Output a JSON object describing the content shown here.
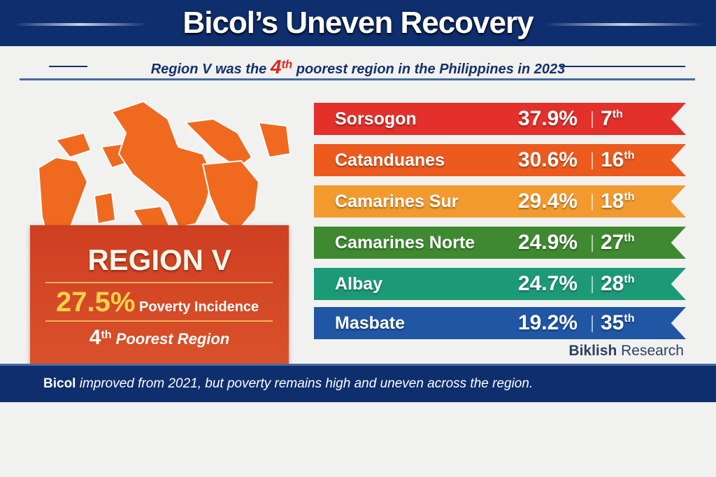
{
  "header": {
    "title": "Bicol’s Uneven Recovery"
  },
  "subtitle": {
    "before": "Region V was the ",
    "rank": "4",
    "rank_suffix": "th",
    "after": " poorest region in the Philippines in 2023"
  },
  "region": {
    "name": "REGION V",
    "incidence": "27.5%",
    "incidence_label": "Poverty Incidence",
    "rank": "4",
    "rank_suffix": "th",
    "rank_label": "Poorest Region"
  },
  "provinces": [
    {
      "name": "Sorsogon",
      "pct": "37.9%",
      "rank": "7",
      "sfx": "th",
      "color": "#e3302a"
    },
    {
      "name": "Catanduanes",
      "pct": "30.6%",
      "rank": "16",
      "sfx": "th",
      "color": "#ec5a1e"
    },
    {
      "name": "Camarines Sur",
      "pct": "29.4%",
      "rank": "18",
      "sfx": "th",
      "color": "#f29a2e"
    },
    {
      "name": "Camarines Norte",
      "pct": "24.9%",
      "rank": "27",
      "sfx": "th",
      "color": "#3f8a30"
    },
    {
      "name": "Albay",
      "pct": "24.7%",
      "rank": "28",
      "sfx": "th",
      "color": "#1c9a78"
    },
    {
      "name": "Masbate",
      "pct": "19.2%",
      "rank": "35",
      "sfx": "th",
      "color": "#2056a4"
    }
  ],
  "source": {
    "bold": "Biklish",
    "rest": " Research"
  },
  "footer": {
    "bold": "Bicol",
    "rest": " improved from 2021, but poverty remains high and uneven across the region."
  }
}
